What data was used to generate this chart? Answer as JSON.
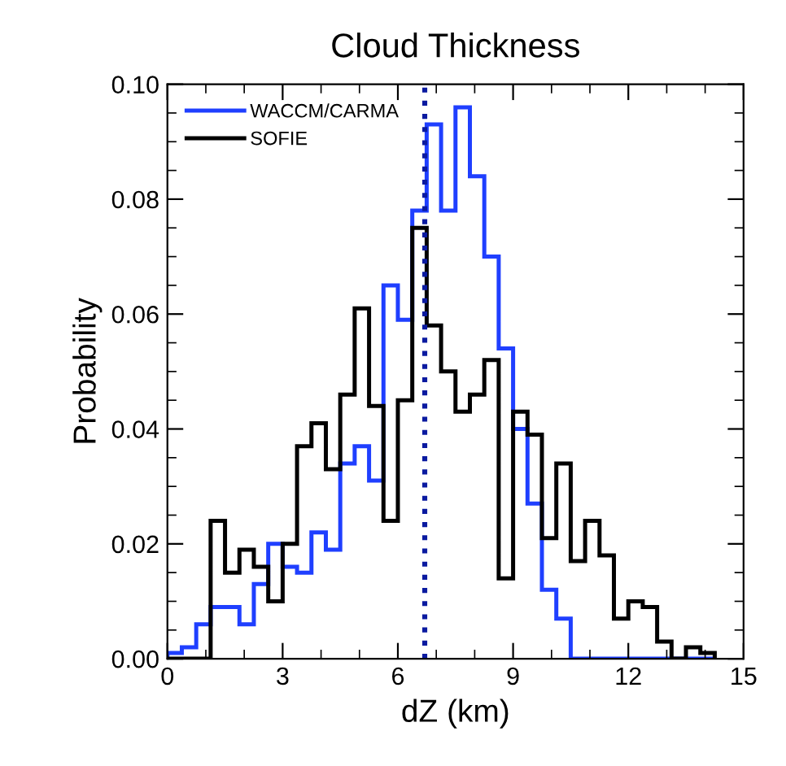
{
  "chart_data": {
    "type": "histogram",
    "title": "Cloud Thickness",
    "xlabel": "dZ (km)",
    "ylabel": "Probability",
    "bins": [
      0,
      0.375,
      0.75,
      1.125,
      1.5,
      1.875,
      2.25,
      2.625,
      3,
      3.375,
      3.75,
      4.125,
      4.5,
      4.875,
      5.25,
      5.625,
      6,
      6.375,
      6.75,
      7.125,
      7.5,
      7.875,
      8.25,
      8.625,
      9,
      9.375,
      9.75,
      10.125,
      10.5,
      10.875,
      11.25,
      11.625,
      12,
      12.375,
      12.75,
      13.125,
      13.5,
      13.875,
      14.25
    ],
    "series": [
      {
        "name": "WACCM/CARMA",
        "color": "#1f3fff",
        "values": [
          0.001,
          0.002,
          0.006,
          0.009,
          0.009,
          0.006,
          0.013,
          0.02,
          0.016,
          0.015,
          0.022,
          0.019,
          0.034,
          0.037,
          0.031,
          0.065,
          0.059,
          0.078,
          0.093,
          0.078,
          0.096,
          0.084,
          0.07,
          0.054,
          0.04,
          0.027,
          0.012,
          0.007,
          0,
          0,
          0,
          0,
          0,
          0,
          0,
          0,
          0,
          0
        ]
      },
      {
        "name": "SOFIE",
        "color": "#000000",
        "values": [
          0,
          0,
          0,
          0.024,
          0.015,
          0.019,
          0.016,
          0.01,
          0.02,
          0.037,
          0.041,
          0.033,
          0.046,
          0.061,
          0.044,
          0.024,
          0.045,
          0.075,
          0.058,
          0.05,
          0.043,
          0.046,
          0.052,
          0.014,
          0.043,
          0.039,
          0.021,
          0.034,
          0.017,
          0.024,
          0.018,
          0.007,
          0.01,
          0.009,
          0.003,
          0,
          0.002,
          0.001
        ]
      }
    ],
    "xlim": [
      0,
      15
    ],
    "xticks": [
      0,
      3,
      6,
      9,
      12,
      15
    ],
    "ylim": [
      0,
      0.1
    ],
    "yticks": [
      {
        "value": 0,
        "label": "0.00"
      },
      {
        "value": 0.02,
        "label": "0.02"
      },
      {
        "value": 0.04,
        "label": "0.04"
      },
      {
        "value": 0.06,
        "label": "0.06"
      },
      {
        "value": 0.08,
        "label": "0.08"
      },
      {
        "value": 0.1,
        "label": "0.10"
      }
    ],
    "ref_lines": [
      {
        "axis": "x",
        "value": 6.7,
        "color": "#0a1aa0",
        "line_style": "dotted"
      }
    ],
    "legend": "top left",
    "grid": false
  }
}
